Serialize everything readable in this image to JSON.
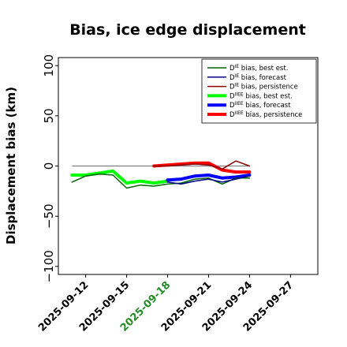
{
  "chart_data": {
    "type": "line",
    "title": "Bias, ice edge displacement",
    "xlabel": "",
    "ylabel": "Displacement bias (km)",
    "ylim": [
      -108,
      108
    ],
    "xlim": [
      "2025-09-10",
      "2025-09-29"
    ],
    "yticks": [
      -100,
      -50,
      0,
      50,
      100
    ],
    "ytick_labels": [
      "−100",
      "−50",
      "0",
      "50",
      "100"
    ],
    "xticks": [
      {
        "date": "2025-09-12",
        "label": "2025-09-12",
        "color": "#000000"
      },
      {
        "date": "2025-09-15",
        "label": "2025-09-15",
        "color": "#000000"
      },
      {
        "date": "2025-09-18",
        "label": "2025-09-18",
        "color": "#228B22"
      },
      {
        "date": "2025-09-21",
        "label": "2025-09-21",
        "color": "#000000"
      },
      {
        "date": "2025-09-24",
        "label": "2025-09-24",
        "color": "#000000"
      },
      {
        "date": "2025-09-27",
        "label": "2025-09-27",
        "color": "#000000"
      }
    ],
    "grid": false,
    "legend_position": "top-right",
    "zero_line": {
      "value": 0,
      "color": "#808080",
      "from": "2025-09-11",
      "to": "2025-09-24"
    },
    "series": [
      {
        "name": "D^IE bias, best est.",
        "legend_base": "D",
        "legend_sup": "IE",
        "legend_rest": " bias, best est.",
        "color": "#006400",
        "width": 1.5,
        "points": [
          [
            "2025-09-11",
            -16
          ],
          [
            "2025-09-12",
            -10
          ],
          [
            "2025-09-13",
            -8
          ],
          [
            "2025-09-14",
            -9
          ],
          [
            "2025-09-15",
            -22
          ],
          [
            "2025-09-16",
            -19
          ],
          [
            "2025-09-17",
            -20
          ],
          [
            "2025-09-18",
            -18
          ],
          [
            "2025-09-19",
            -17
          ],
          [
            "2025-09-20",
            -13
          ],
          [
            "2025-09-21",
            -12
          ],
          [
            "2025-09-22",
            -18
          ],
          [
            "2025-09-23",
            -12
          ],
          [
            "2025-09-24",
            -12
          ]
        ]
      },
      {
        "name": "D^IE bias, forecast",
        "legend_base": "D",
        "legend_sup": "IE",
        "legend_rest": " bias, forecast",
        "color": "#00008B",
        "width": 1.5,
        "points": [
          [
            "2025-09-18",
            -16
          ],
          [
            "2025-09-19",
            -18
          ],
          [
            "2025-09-20",
            -15
          ],
          [
            "2025-09-21",
            -13
          ],
          [
            "2025-09-22",
            -16
          ],
          [
            "2025-09-23",
            -13
          ],
          [
            "2025-09-24",
            -10
          ]
        ]
      },
      {
        "name": "D^IE bias, persistence",
        "legend_base": "D",
        "legend_sup": "IE",
        "legend_rest": " bias, persistence",
        "color": "#8B0000",
        "width": 1.5,
        "points": [
          [
            "2025-09-17",
            0
          ],
          [
            "2025-09-18",
            0
          ],
          [
            "2025-09-19",
            1
          ],
          [
            "2025-09-20",
            2
          ],
          [
            "2025-09-21",
            1
          ],
          [
            "2025-09-22",
            -3
          ],
          [
            "2025-09-23",
            5
          ],
          [
            "2025-09-24",
            0
          ]
        ]
      },
      {
        "name": "D^IIEE bias, best est.",
        "legend_base": "D",
        "legend_sup": "IIEE",
        "legend_rest": " bias, best est.",
        "color": "#00FF00",
        "width": 4,
        "points": [
          [
            "2025-09-11",
            -9
          ],
          [
            "2025-09-12",
            -9
          ],
          [
            "2025-09-13",
            -7
          ],
          [
            "2025-09-14",
            -5
          ],
          [
            "2025-09-15",
            -17
          ],
          [
            "2025-09-16",
            -15
          ],
          [
            "2025-09-17",
            -17
          ],
          [
            "2025-09-18",
            -15
          ]
        ]
      },
      {
        "name": "D^IIEE bias, forecast",
        "legend_base": "D",
        "legend_sup": "IIEE",
        "legend_rest": " bias, forecast",
        "color": "#0000FF",
        "width": 4,
        "points": [
          [
            "2025-09-18",
            -14
          ],
          [
            "2025-09-19",
            -13
          ],
          [
            "2025-09-20",
            -10
          ],
          [
            "2025-09-21",
            -9
          ],
          [
            "2025-09-22",
            -12
          ],
          [
            "2025-09-23",
            -11
          ],
          [
            "2025-09-24",
            -9
          ]
        ]
      },
      {
        "name": "D^IIEE bias, persistence",
        "legend_base": "D",
        "legend_sup": "IIEE",
        "legend_rest": " bias, persistence",
        "color": "#FF0000",
        "width": 4,
        "points": [
          [
            "2025-09-17",
            0
          ],
          [
            "2025-09-18",
            1
          ],
          [
            "2025-09-19",
            2
          ],
          [
            "2025-09-20",
            3
          ],
          [
            "2025-09-21",
            3
          ],
          [
            "2025-09-22",
            -4
          ],
          [
            "2025-09-23",
            -6
          ],
          [
            "2025-09-24",
            -6
          ]
        ]
      }
    ]
  }
}
